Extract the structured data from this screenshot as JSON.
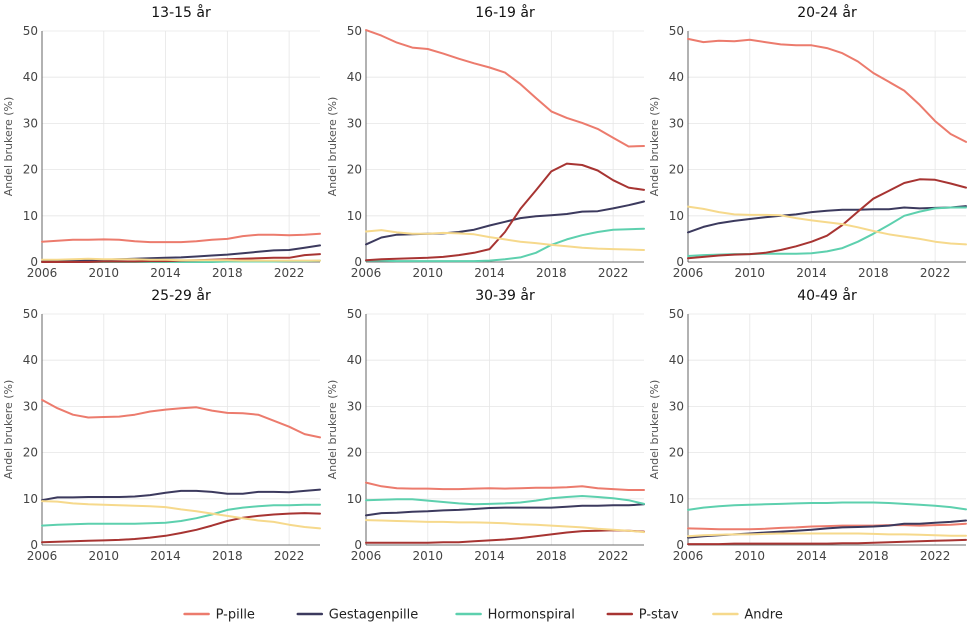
{
  "chart_data": {
    "type": "line",
    "ylabel": "Andel brukere (%)",
    "xlim": [
      2006,
      2024
    ],
    "ylim": [
      0,
      50
    ],
    "xticks": [
      2006,
      2010,
      2014,
      2018,
      2022
    ],
    "yticks": [
      0,
      10,
      20,
      30,
      40,
      50
    ],
    "grid": true,
    "legend_position": "bottom",
    "colors": {
      "P-pille": "#ec7b6d",
      "Gestagenpille": "#3c3a5e",
      "Hormonspiral": "#5dd0ae",
      "P-stav": "#a73432",
      "Andre": "#f6d98c"
    },
    "legend": [
      "P-pille",
      "Gestagenpille",
      "Hormonspiral",
      "P-stav",
      "Andre"
    ],
    "x": [
      2006,
      2007,
      2008,
      2009,
      2010,
      2011,
      2012,
      2013,
      2014,
      2015,
      2016,
      2017,
      2018,
      2019,
      2020,
      2021,
      2022,
      2023,
      2024
    ],
    "panels": [
      {
        "title": "13-15 år",
        "series": [
          {
            "name": "P-pille",
            "values": [
              4.4,
              4.6,
              4.8,
              4.8,
              4.9,
              4.8,
              4.5,
              4.3,
              4.3,
              4.3,
              4.5,
              4.8,
              5.0,
              5.6,
              5.9,
              5.9,
              5.8,
              5.9,
              6.1
            ]
          },
          {
            "name": "Gestagenpille",
            "values": [
              0.1,
              0.2,
              0.3,
              0.4,
              0.5,
              0.6,
              0.7,
              0.8,
              0.9,
              1.0,
              1.2,
              1.4,
              1.6,
              1.9,
              2.2,
              2.5,
              2.6,
              3.1,
              3.6
            ]
          },
          {
            "name": "Hormonspiral",
            "values": [
              0.0,
              0.0,
              0.0,
              0.0,
              0.0,
              0.0,
              0.0,
              0.0,
              0.0,
              0.0,
              0.0,
              0.0,
              0.1,
              0.1,
              0.1,
              0.1,
              0.2,
              0.2,
              0.3
            ]
          },
          {
            "name": "P-stav",
            "values": [
              0.0,
              0.0,
              0.0,
              0.0,
              0.1,
              0.1,
              0.1,
              0.2,
              0.2,
              0.3,
              0.4,
              0.5,
              0.6,
              0.7,
              0.8,
              0.9,
              0.9,
              1.5,
              1.7
            ]
          },
          {
            "name": "Andre",
            "values": [
              0.5,
              0.5,
              0.6,
              0.7,
              0.6,
              0.6,
              0.6,
              0.5,
              0.5,
              0.4,
              0.4,
              0.4,
              0.4,
              0.3,
              0.3,
              0.3,
              0.3,
              0.3,
              0.3
            ]
          }
        ]
      },
      {
        "title": "16-19 år",
        "series": [
          {
            "name": "P-pille",
            "values": [
              50.2,
              49.0,
              47.5,
              46.4,
              46.1,
              45.1,
              44.0,
              43.0,
              42.1,
              41.0,
              38.5,
              35.5,
              32.6,
              31.2,
              30.1,
              28.8,
              26.9,
              25.0,
              25.1
            ]
          },
          {
            "name": "Gestagenpille",
            "values": [
              3.8,
              5.3,
              5.9,
              6.0,
              6.1,
              6.2,
              6.5,
              7.0,
              7.9,
              8.7,
              9.5,
              9.9,
              10.1,
              10.4,
              10.9,
              11.0,
              11.6,
              12.3,
              13.1
            ]
          },
          {
            "name": "Hormonspiral",
            "values": [
              0.3,
              0.3,
              0.2,
              0.2,
              0.2,
              0.2,
              0.2,
              0.2,
              0.3,
              0.6,
              1.0,
              2.0,
              3.7,
              4.9,
              5.8,
              6.5,
              7.0,
              7.1,
              7.2
            ]
          },
          {
            "name": "P-stav",
            "values": [
              0.4,
              0.6,
              0.7,
              0.8,
              0.9,
              1.1,
              1.5,
              2.0,
              2.8,
              6.5,
              11.5,
              15.5,
              19.6,
              21.3,
              21.0,
              19.8,
              17.7,
              16.1,
              15.6
            ]
          },
          {
            "name": "Andre",
            "values": [
              6.6,
              6.9,
              6.4,
              6.1,
              6.1,
              6.3,
              6.2,
              6.0,
              5.4,
              4.9,
              4.4,
              4.1,
              3.7,
              3.4,
              3.1,
              2.9,
              2.8,
              2.7,
              2.6
            ]
          }
        ]
      },
      {
        "title": "20-24 år",
        "series": [
          {
            "name": "P-pille",
            "values": [
              48.3,
              47.6,
              47.9,
              47.8,
              48.1,
              47.6,
              47.1,
              46.9,
              46.9,
              46.3,
              45.2,
              43.4,
              40.9,
              39.0,
              37.1,
              34.0,
              30.5,
              27.7,
              26.0
            ]
          },
          {
            "name": "Gestagenpille",
            "values": [
              6.4,
              7.6,
              8.4,
              8.9,
              9.3,
              9.7,
              10.0,
              10.3,
              10.8,
              11.1,
              11.3,
              11.3,
              11.4,
              11.4,
              11.8,
              11.6,
              11.7,
              11.8,
              12.1
            ]
          },
          {
            "name": "Hormonspiral",
            "values": [
              1.3,
              1.5,
              1.6,
              1.7,
              1.7,
              1.8,
              1.8,
              1.8,
              1.9,
              2.3,
              3.0,
              4.4,
              6.1,
              8.0,
              10.0,
              10.9,
              11.6,
              11.8,
              11.8
            ]
          },
          {
            "name": "P-stav",
            "values": [
              0.8,
              1.1,
              1.4,
              1.6,
              1.7,
              2.0,
              2.6,
              3.4,
              4.4,
              5.7,
              8.0,
              10.9,
              13.7,
              15.4,
              17.1,
              17.9,
              17.8,
              17.0,
              16.1
            ]
          },
          {
            "name": "Andre",
            "values": [
              12.0,
              11.5,
              10.8,
              10.3,
              10.2,
              10.2,
              10.1,
              9.5,
              9.0,
              8.6,
              8.2,
              7.5,
              6.7,
              6.0,
              5.5,
              5.0,
              4.4,
              4.0,
              3.8
            ]
          }
        ]
      },
      {
        "title": "25-29 år",
        "series": [
          {
            "name": "P-pille",
            "values": [
              31.4,
              29.6,
              28.2,
              27.6,
              27.7,
              27.8,
              28.2,
              28.9,
              29.3,
              29.6,
              29.8,
              29.1,
              28.6,
              28.5,
              28.2,
              26.9,
              25.6,
              24.0,
              23.3
            ]
          },
          {
            "name": "Gestagenpille",
            "values": [
              9.7,
              10.3,
              10.3,
              10.4,
              10.4,
              10.4,
              10.5,
              10.8,
              11.3,
              11.7,
              11.7,
              11.5,
              11.1,
              11.1,
              11.5,
              11.5,
              11.4,
              11.7,
              12.0
            ]
          },
          {
            "name": "Hormonspiral",
            "values": [
              4.2,
              4.4,
              4.5,
              4.6,
              4.6,
              4.6,
              4.6,
              4.7,
              4.8,
              5.2,
              5.8,
              6.6,
              7.6,
              8.1,
              8.4,
              8.6,
              8.6,
              8.7,
              8.7
            ]
          },
          {
            "name": "P-stav",
            "values": [
              0.6,
              0.7,
              0.8,
              0.9,
              1.0,
              1.1,
              1.3,
              1.6,
              2.0,
              2.6,
              3.3,
              4.2,
              5.2,
              5.9,
              6.3,
              6.6,
              6.8,
              6.9,
              6.8
            ]
          },
          {
            "name": "Andre",
            "values": [
              9.5,
              9.4,
              9.0,
              8.8,
              8.7,
              8.6,
              8.5,
              8.4,
              8.2,
              7.7,
              7.3,
              6.8,
              6.3,
              5.8,
              5.3,
              5.0,
              4.4,
              3.9,
              3.6
            ]
          }
        ]
      },
      {
        "title": "30-39 år",
        "series": [
          {
            "name": "P-pille",
            "values": [
              13.5,
              12.7,
              12.3,
              12.2,
              12.2,
              12.1,
              12.1,
              12.2,
              12.3,
              12.2,
              12.3,
              12.4,
              12.4,
              12.5,
              12.7,
              12.3,
              12.1,
              11.9,
              11.9
            ]
          },
          {
            "name": "Gestagenpille",
            "values": [
              6.4,
              6.9,
              7.0,
              7.2,
              7.3,
              7.5,
              7.6,
              7.8,
              8.0,
              8.1,
              8.1,
              8.1,
              8.1,
              8.3,
              8.5,
              8.5,
              8.6,
              8.6,
              8.8
            ]
          },
          {
            "name": "Hormonspiral",
            "values": [
              9.7,
              9.8,
              9.9,
              9.9,
              9.6,
              9.3,
              9.0,
              8.8,
              8.9,
              9.0,
              9.2,
              9.6,
              10.1,
              10.4,
              10.6,
              10.4,
              10.1,
              9.7,
              8.9
            ]
          },
          {
            "name": "P-stav",
            "values": [
              0.5,
              0.5,
              0.5,
              0.5,
              0.5,
              0.6,
              0.6,
              0.8,
              1.0,
              1.2,
              1.5,
              1.9,
              2.3,
              2.7,
              3.0,
              3.1,
              3.2,
              3.1,
              2.9
            ]
          },
          {
            "name": "Andre",
            "values": [
              5.4,
              5.3,
              5.2,
              5.1,
              5.0,
              5.0,
              4.9,
              4.9,
              4.8,
              4.7,
              4.5,
              4.4,
              4.2,
              4.0,
              3.8,
              3.5,
              3.3,
              3.1,
              2.8
            ]
          }
        ]
      },
      {
        "title": "40-49 år",
        "series": [
          {
            "name": "P-pille",
            "values": [
              3.6,
              3.5,
              3.4,
              3.4,
              3.4,
              3.5,
              3.7,
              3.8,
              4.0,
              4.1,
              4.2,
              4.2,
              4.2,
              4.3,
              4.3,
              4.2,
              4.3,
              4.4,
              4.6
            ]
          },
          {
            "name": "Gestagenpille",
            "values": [
              1.6,
              1.9,
              2.1,
              2.3,
              2.5,
              2.7,
              2.9,
              3.1,
              3.3,
              3.6,
              3.8,
              3.9,
              4.0,
              4.2,
              4.6,
              4.6,
              4.8,
              5.0,
              5.3
            ]
          },
          {
            "name": "Hormonspiral",
            "values": [
              7.6,
              8.1,
              8.4,
              8.6,
              8.7,
              8.8,
              8.9,
              9.0,
              9.1,
              9.1,
              9.2,
              9.2,
              9.2,
              9.1,
              8.9,
              8.7,
              8.5,
              8.2,
              7.7
            ]
          },
          {
            "name": "P-stav",
            "values": [
              0.2,
              0.2,
              0.2,
              0.3,
              0.3,
              0.3,
              0.3,
              0.3,
              0.3,
              0.3,
              0.4,
              0.4,
              0.5,
              0.6,
              0.7,
              0.8,
              0.9,
              1.0,
              1.1
            ]
          },
          {
            "name": "Andre",
            "values": [
              1.9,
              2.1,
              2.2,
              2.3,
              2.3,
              2.4,
              2.5,
              2.5,
              2.5,
              2.5,
              2.5,
              2.5,
              2.4,
              2.3,
              2.3,
              2.2,
              2.1,
              2.0,
              2.0
            ]
          }
        ]
      }
    ]
  }
}
